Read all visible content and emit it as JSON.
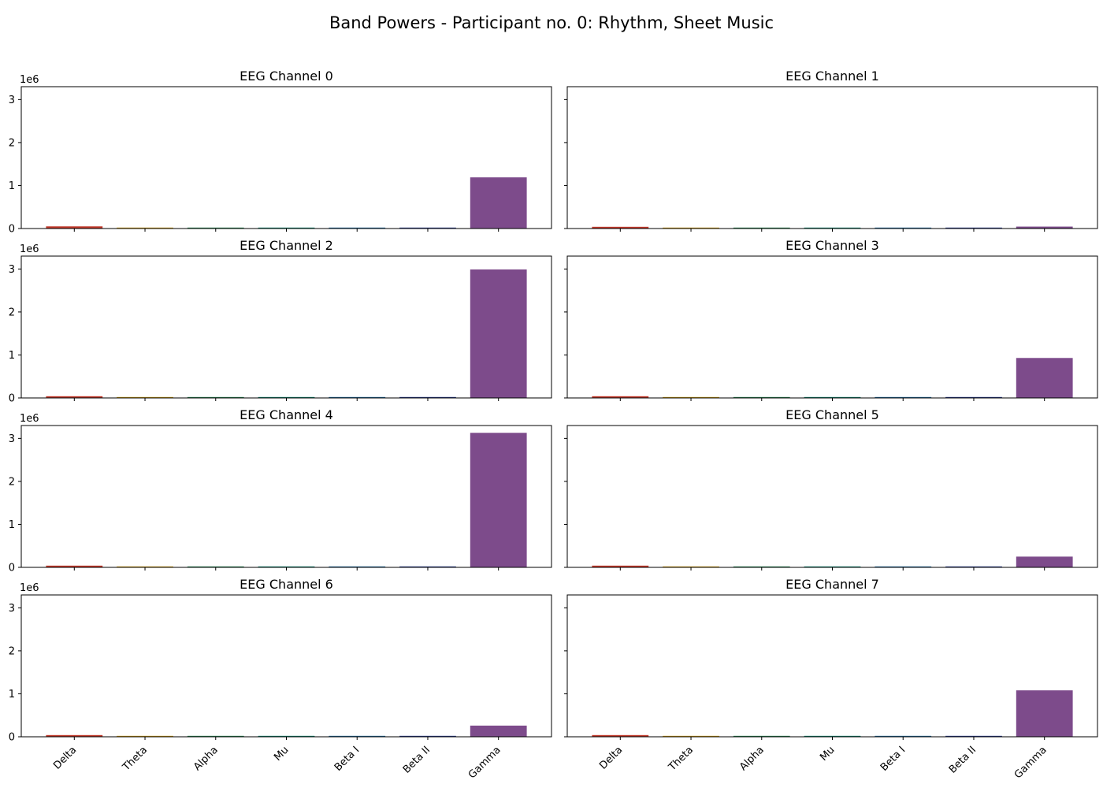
{
  "figure": {
    "title": "Band Powers - Participant no. 0: Rhythm, Sheet Music",
    "offset_label": "1e6"
  },
  "chart_data": {
    "type": "bar",
    "categories": [
      "Delta",
      "Theta",
      "Alpha",
      "Mu",
      "Beta I",
      "Beta II",
      "Gamma"
    ],
    "colors": [
      "#c0392b",
      "#d4a017",
      "#2e8b57",
      "#138d75",
      "#2471a3",
      "#2c3e91",
      "#7d4b8b"
    ],
    "ylim": [
      0,
      3300000
    ],
    "yticks": [
      0,
      1000000,
      2000000,
      3000000
    ],
    "ytick_labels": [
      "0",
      "1",
      "2",
      "3"
    ],
    "grid": false,
    "sharey": true,
    "panels": [
      {
        "title": "EEG Channel 0",
        "values": [
          50000,
          8000,
          4000,
          3000,
          3000,
          3000,
          1190000
        ]
      },
      {
        "title": "EEG Channel 1",
        "values": [
          40000,
          8000,
          4000,
          3000,
          3000,
          3000,
          45000
        ]
      },
      {
        "title": "EEG Channel 2",
        "values": [
          40000,
          8000,
          4000,
          3000,
          3000,
          3000,
          2990000
        ]
      },
      {
        "title": "EEG Channel 3",
        "values": [
          40000,
          8000,
          4000,
          3000,
          3000,
          3000,
          930000
        ]
      },
      {
        "title": "EEG Channel 4",
        "values": [
          40000,
          8000,
          4000,
          3000,
          3000,
          3000,
          3130000
        ]
      },
      {
        "title": "EEG Channel 5",
        "values": [
          40000,
          8000,
          4000,
          3000,
          3000,
          3000,
          250000
        ]
      },
      {
        "title": "EEG Channel 6",
        "values": [
          40000,
          8000,
          4000,
          3000,
          3000,
          3000,
          260000
        ]
      },
      {
        "title": "EEG Channel 7",
        "values": [
          40000,
          8000,
          4000,
          3000,
          3000,
          3000,
          1080000
        ]
      }
    ]
  }
}
